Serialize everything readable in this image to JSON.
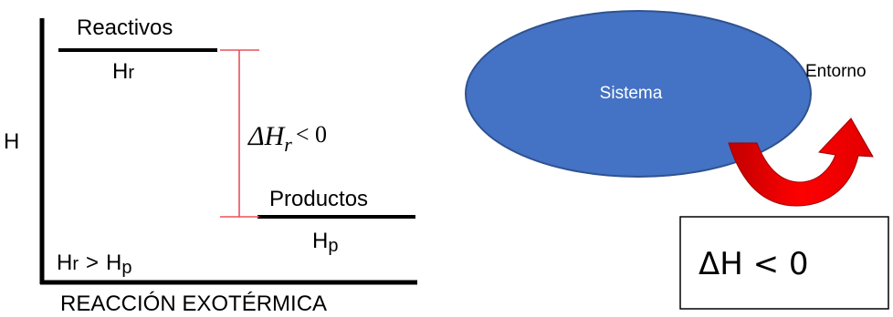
{
  "energy_diagram": {
    "axis_label": "H",
    "reactants": {
      "name": "Reactivos",
      "symbol_main": "H",
      "symbol_sub": "r"
    },
    "products": {
      "name": "Productos",
      "symbol_main": "H",
      "symbol_sub": "p"
    },
    "delta": {
      "symbol": "ΔH",
      "sub": "r",
      "relation": "< 0"
    },
    "comparison": {
      "left_main": "H",
      "left_sub": "r",
      "operator": ">",
      "right_main": "H",
      "right_sub": "p"
    },
    "caption": "REACCIÓN EXOTÉRMICA",
    "colors": {
      "line": "#000000",
      "bracket": "#e8505b"
    }
  },
  "system_diagram": {
    "system_label": "Sistema",
    "surroundings_label": "Entorno",
    "enthalpy_box": "ΔH < 0",
    "colors": {
      "ellipse_fill": "#4472c4",
      "ellipse_stroke": "#2f528f",
      "arrow_dark": "#c00000",
      "arrow_light": "#ff0000"
    }
  }
}
